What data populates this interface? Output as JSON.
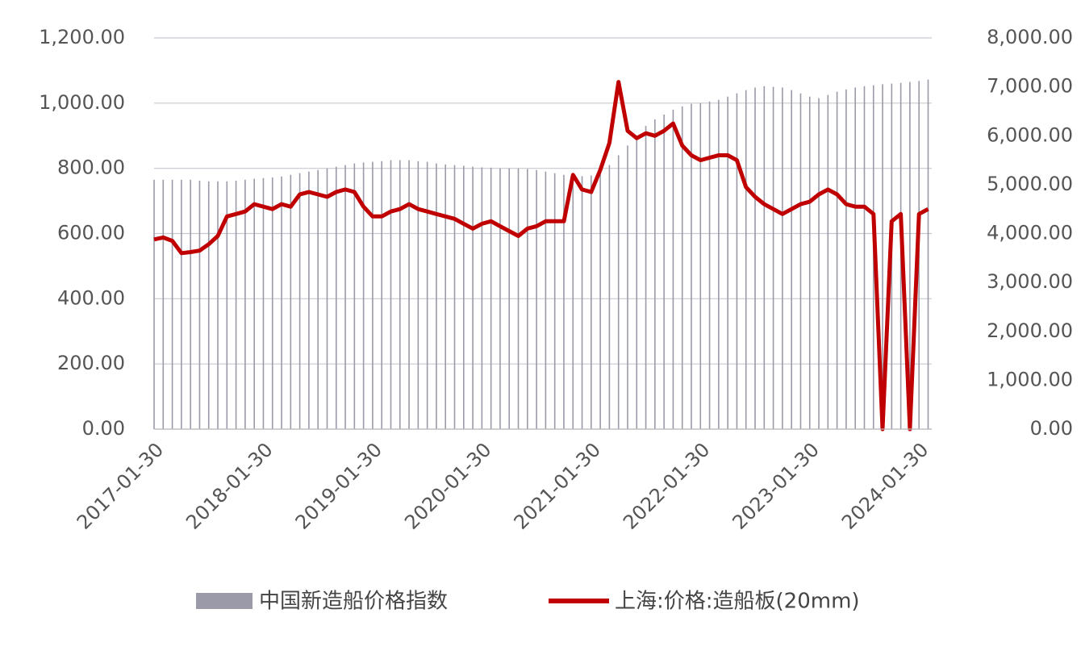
{
  "chart_data": {
    "type": "bar-line",
    "categories": [
      "2017-01-30",
      null,
      null,
      null,
      null,
      null,
      null,
      null,
      null,
      null,
      null,
      null,
      "2018-01-30",
      null,
      null,
      null,
      null,
      null,
      null,
      null,
      null,
      null,
      null,
      null,
      "2019-01-30",
      null,
      null,
      null,
      null,
      null,
      null,
      null,
      null,
      null,
      null,
      null,
      "2020-01-30",
      null,
      null,
      null,
      null,
      null,
      null,
      null,
      null,
      null,
      null,
      null,
      "2021-01-30",
      null,
      null,
      null,
      null,
      null,
      null,
      null,
      null,
      null,
      null,
      null,
      "2022-01-30",
      null,
      null,
      null,
      null,
      null,
      null,
      null,
      null,
      null,
      null,
      null,
      "2023-01-30",
      null,
      null,
      null,
      null,
      null,
      null,
      null,
      null,
      null,
      null,
      null,
      "2024-01-30",
      null
    ],
    "series": [
      {
        "name": "中国新造船价格指数",
        "type": "bar",
        "color": "#9a9aa8",
        "values": [
          765,
          765,
          765,
          765,
          765,
          762,
          760,
          760,
          760,
          762,
          765,
          768,
          770,
          772,
          775,
          780,
          785,
          790,
          795,
          800,
          805,
          810,
          815,
          818,
          820,
          822,
          825,
          825,
          825,
          822,
          820,
          815,
          812,
          810,
          808,
          805,
          803,
          802,
          800,
          800,
          800,
          798,
          795,
          790,
          785,
          780,
          778,
          776,
          778,
          790,
          810,
          840,
          870,
          900,
          930,
          950,
          965,
          980,
          990,
          998,
          1000,
          1005,
          1010,
          1020,
          1030,
          1040,
          1048,
          1052,
          1050,
          1048,
          1040,
          1030,
          1020,
          1015,
          1025,
          1035,
          1042,
          1048,
          1052,
          1055,
          1058,
          1060,
          1062,
          1065,
          1068,
          1072
        ]
      },
      {
        "name": "上海:价格:造船板(20mm)",
        "type": "line",
        "axis": "y2",
        "color": "#c00000",
        "values": [
          3880,
          3920,
          3850,
          3600,
          3620,
          3650,
          3780,
          3950,
          4350,
          4400,
          4450,
          4600,
          4550,
          4500,
          4600,
          4550,
          4800,
          4850,
          4800,
          4750,
          4850,
          4900,
          4850,
          4550,
          4350,
          4350,
          4450,
          4500,
          4600,
          4500,
          4450,
          4400,
          4350,
          4300,
          4200,
          4100,
          4200,
          4250,
          4150,
          4050,
          3950,
          4100,
          4150,
          4250,
          4250,
          4250,
          5200,
          4900,
          4850,
          5300,
          5850,
          7100,
          6100,
          5950,
          6050,
          6000,
          6100,
          6250,
          5800,
          5600,
          5500,
          5550,
          5600,
          5600,
          5500,
          4950,
          4750,
          4600,
          4500,
          4400,
          4500,
          4600,
          4650,
          4800,
          4900,
          4800,
          4600,
          4550,
          4550,
          4400,
          0,
          4250,
          4400,
          0,
          4400,
          4500
        ]
      }
    ],
    "ylim": [
      0,
      1200
    ],
    "yticks": [
      {
        "value": 0,
        "label": "0.00"
      },
      {
        "value": 200,
        "label": "200.00"
      },
      {
        "value": 400,
        "label": "400.00"
      },
      {
        "value": 600,
        "label": "600.00"
      },
      {
        "value": 800,
        "label": "800.00"
      },
      {
        "value": 1000,
        "label": "1,000.00"
      },
      {
        "value": 1200,
        "label": "1,200.00"
      }
    ],
    "y2lim": [
      0,
      8000
    ],
    "y2ticks": [
      {
        "value": 0,
        "label": "0.00"
      },
      {
        "value": 1000,
        "label": "1,000.00"
      },
      {
        "value": 2000,
        "label": "2,000.00"
      },
      {
        "value": 3000,
        "label": "3,000.00"
      },
      {
        "value": 4000,
        "label": "4,000.00"
      },
      {
        "value": 5000,
        "label": "5,000.00"
      },
      {
        "value": 6000,
        "label": "6,000.00"
      },
      {
        "value": 7000,
        "label": "7,000.00"
      },
      {
        "value": 8000,
        "label": "8,000.00"
      }
    ],
    "grid": true,
    "legend": "bottom"
  }
}
